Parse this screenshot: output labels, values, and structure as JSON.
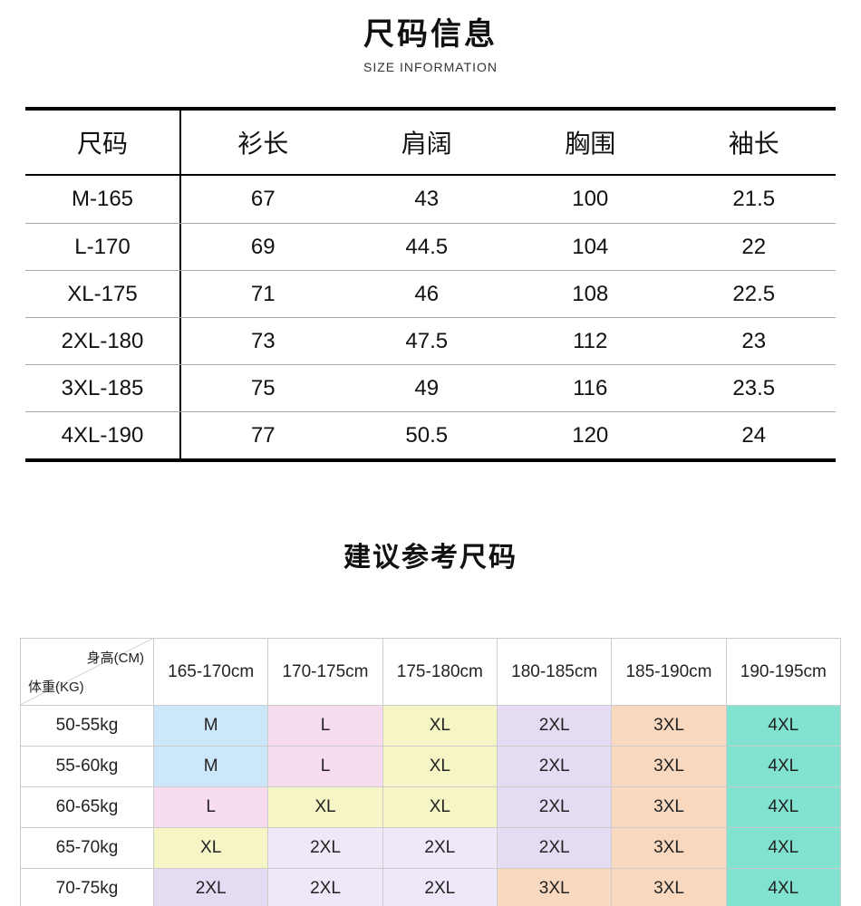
{
  "page": {
    "title": "尺码信息",
    "subtitle": "SIZE INFORMATION",
    "section_title": "建议参考尺码"
  },
  "size_table": {
    "headers": [
      "尺码",
      "衫长",
      "肩阔",
      "胸围",
      "袖长"
    ],
    "rows": [
      {
        "size": "M-165",
        "values": [
          "67",
          "43",
          "100",
          "21.5"
        ]
      },
      {
        "size": "L-170",
        "values": [
          "69",
          "44.5",
          "104",
          "22"
        ]
      },
      {
        "size": "XL-175",
        "values": [
          "71",
          "46",
          "108",
          "22.5"
        ]
      },
      {
        "size": "2XL-180",
        "values": [
          "73",
          "47.5",
          "112",
          "23"
        ]
      },
      {
        "size": "3XL-185",
        "values": [
          "75",
          "49",
          "116",
          "23.5"
        ]
      },
      {
        "size": "4XL-190",
        "values": [
          "77",
          "50.5",
          "120",
          "24"
        ]
      }
    ]
  },
  "recommend_table": {
    "corner_top": "身高(CM)",
    "corner_bottom": "体重(KG)",
    "height_headers": [
      "165-170cm",
      "170-175cm",
      "175-180cm",
      "180-185cm",
      "185-190cm",
      "190-195cm"
    ],
    "rows": [
      {
        "weight": "50-55kg",
        "cells": [
          {
            "label": "M",
            "color": "#cce7f9"
          },
          {
            "label": "L",
            "color": "#f7dcf0"
          },
          {
            "label": "XL",
            "color": "#f5f5c5"
          },
          {
            "label": "2XL",
            "color": "#e5dcf4"
          },
          {
            "label": "3XL",
            "color": "#f8d9c0"
          },
          {
            "label": "4XL",
            "color": "#80e2cf"
          }
        ]
      },
      {
        "weight": "55-60kg",
        "cells": [
          {
            "label": "M",
            "color": "#cce7f9"
          },
          {
            "label": "L",
            "color": "#f7dcf0"
          },
          {
            "label": "XL",
            "color": "#f5f5c5"
          },
          {
            "label": "2XL",
            "color": "#e5dcf4"
          },
          {
            "label": "3XL",
            "color": "#f8d9c0"
          },
          {
            "label": "4XL",
            "color": "#80e2cf"
          }
        ]
      },
      {
        "weight": "60-65kg",
        "cells": [
          {
            "label": "L",
            "color": "#f7dcf0"
          },
          {
            "label": "XL",
            "color": "#f5f5c5"
          },
          {
            "label": "XL",
            "color": "#f5f5c5"
          },
          {
            "label": "2XL",
            "color": "#e5dcf4"
          },
          {
            "label": "3XL",
            "color": "#f8d9c0"
          },
          {
            "label": "4XL",
            "color": "#80e2cf"
          }
        ]
      },
      {
        "weight": "65-70kg",
        "cells": [
          {
            "label": "XL",
            "color": "#f5f5c5"
          },
          {
            "label": "2XL",
            "color": "#eee8f8"
          },
          {
            "label": "2XL",
            "color": "#eee8f8"
          },
          {
            "label": "2XL",
            "color": "#e5dcf4"
          },
          {
            "label": "3XL",
            "color": "#f8d9c0"
          },
          {
            "label": "4XL",
            "color": "#80e2cf"
          }
        ]
      },
      {
        "weight": "70-75kg",
        "cells": [
          {
            "label": "2XL",
            "color": "#e5dcf4"
          },
          {
            "label": "2XL",
            "color": "#eee8f8"
          },
          {
            "label": "2XL",
            "color": "#eee8f8"
          },
          {
            "label": "3XL",
            "color": "#f8d9c0"
          },
          {
            "label": "3XL",
            "color": "#f8d9c0"
          },
          {
            "label": "4XL",
            "color": "#80e2cf"
          }
        ]
      }
    ],
    "partial_row": {
      "weight": "",
      "cells": [
        {
          "label": "",
          "color": "#f8d9c0"
        },
        {
          "label": "",
          "color": "#f8d9c0"
        },
        {
          "label": "",
          "color": "#f8d9c0"
        },
        {
          "label": "",
          "color": "#f8d9c0"
        },
        {
          "label": "",
          "color": "#80e2cf"
        },
        {
          "label": "",
          "color": "#80e2cf"
        }
      ]
    }
  }
}
